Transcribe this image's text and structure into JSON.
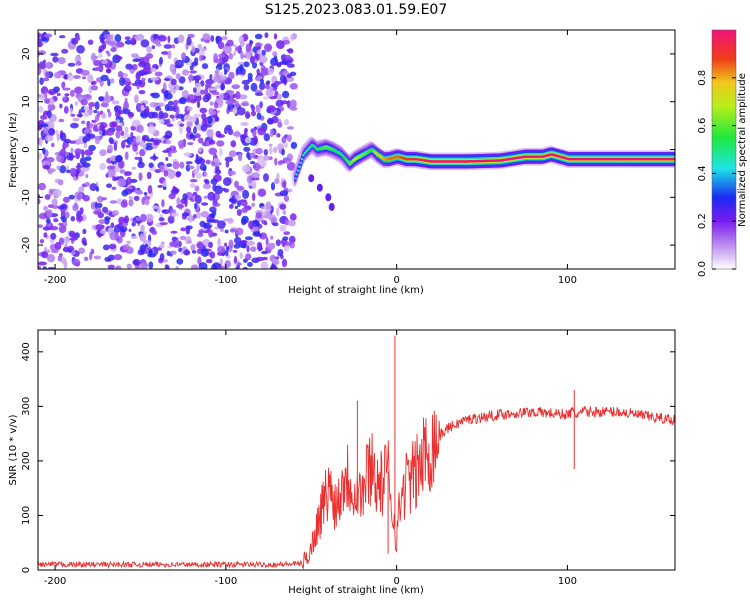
{
  "title": "S125.2023.083.01.59.E07",
  "chart_data": [
    {
      "type": "heatmap",
      "xlabel": "Height of straight line (km)",
      "ylabel": "Frequency (Hz)",
      "xlim": [
        -210,
        163
      ],
      "ylim": [
        -25,
        25
      ],
      "x_ticks": [
        -200,
        -100,
        0,
        100
      ],
      "y_ticks": [
        -20,
        -10,
        0,
        10,
        20
      ],
      "colorbar": {
        "label": "Normalized spectral amplitude",
        "range": [
          0,
          1
        ],
        "ticks": [
          "0.0",
          "0.2",
          "0.4",
          "0.6",
          "0.8"
        ]
      },
      "noise_region": {
        "x_range": [
          -210,
          -60
        ],
        "y_range": [
          -25,
          24
        ],
        "level": [
          0.05,
          0.3
        ]
      },
      "ridge": {
        "x": [
          -60,
          -55,
          -50,
          -47,
          -42,
          -38,
          -33,
          -28,
          -25,
          -20,
          -15,
          -12,
          -8,
          -5,
          0,
          5,
          10,
          20,
          40,
          60,
          75,
          85,
          90,
          100,
          115,
          130,
          163
        ],
        "freq": [
          -6,
          -1,
          1,
          0,
          0.5,
          0,
          -1,
          -3,
          -2,
          -1,
          0,
          -1,
          -2,
          -2,
          -1.5,
          -2,
          -2,
          -2.5,
          -2.5,
          -2.3,
          -1.5,
          -1.5,
          -1,
          -2,
          -2,
          -2,
          -2
        ],
        "amplitude": [
          0.4,
          0.45,
          0.5,
          0.5,
          0.6,
          0.55,
          0.5,
          0.6,
          0.7,
          0.6,
          0.55,
          0.75,
          0.8,
          0.85,
          0.85,
          0.9,
          0.95,
          1,
          1,
          1,
          1,
          1,
          1,
          1,
          1,
          1,
          1
        ]
      },
      "tail": {
        "x": [
          -50,
          -45,
          -40,
          -38
        ],
        "freq": [
          -6,
          -8,
          -10,
          -12
        ]
      }
    },
    {
      "type": "line",
      "xlabel": "Height of straight line (km)",
      "ylabel": "SNR (10 * v/v)",
      "xlim": [
        -210,
        163
      ],
      "ylim": [
        0,
        440
      ],
      "x_ticks": [
        -200,
        -100,
        0,
        100
      ],
      "y_ticks": [
        0,
        100,
        200,
        300,
        400
      ],
      "series": [
        {
          "color": "#e83030",
          "x": [
            -210,
            -190,
            -170,
            -150,
            -130,
            -110,
            -90,
            -70,
            -55,
            -50,
            -45,
            -40,
            -35,
            -30,
            -25,
            -20,
            -15,
            -10,
            -5,
            -2,
            0,
            2,
            5,
            10,
            15,
            20,
            30,
            40,
            60,
            80,
            100,
            103,
            105,
            110,
            130,
            150,
            163
          ],
          "y": [
            10,
            10,
            10,
            10,
            10,
            10,
            10,
            10,
            12,
            40,
            100,
            150,
            120,
            180,
            150,
            140,
            200,
            150,
            180,
            100,
            60,
            120,
            160,
            170,
            200,
            230,
            260,
            275,
            285,
            290,
            285,
            290,
            285,
            290,
            290,
            280,
            275
          ]
        }
      ],
      "spikes": [
        {
          "x": -1,
          "y": 430
        },
        {
          "x": -23,
          "y": 310
        },
        {
          "x": 104,
          "y": 330
        },
        {
          "x": 104,
          "y": 185
        },
        {
          "x": -5,
          "y": 30
        }
      ]
    }
  ]
}
